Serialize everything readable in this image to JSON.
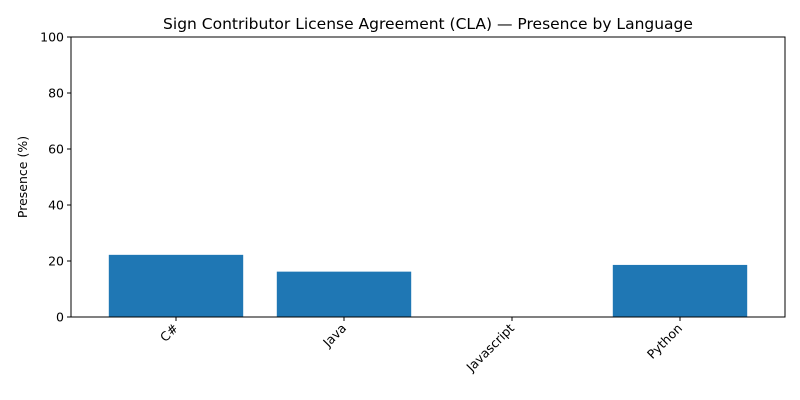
{
  "chart_data": {
    "type": "bar",
    "title": "Sign Contributor License Agreement (CLA) — Presence by Language",
    "xlabel": "",
    "ylabel": "Presence (%)",
    "categories": [
      "C#",
      "Java",
      "Javascript",
      "Python"
    ],
    "values": [
      22.2,
      16.2,
      0,
      18.6
    ],
    "ylim": [
      0,
      100
    ],
    "yticks": [
      "0",
      "20",
      "40",
      "60",
      "80",
      "100"
    ],
    "bar_color": "#1f77b4",
    "grid": false,
    "legend": "none"
  }
}
